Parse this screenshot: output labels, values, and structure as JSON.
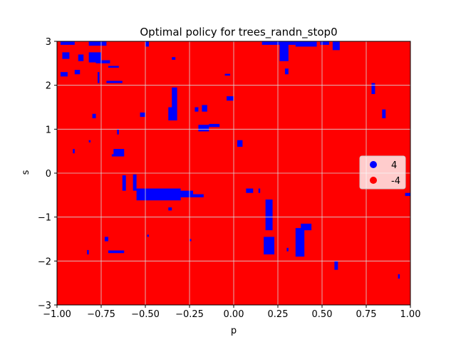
{
  "chart_data": {
    "type": "heatmap",
    "title": "Optimal policy for trees_randn_stop0",
    "xlabel": "p",
    "ylabel": "s",
    "xlim": [
      -1.0,
      1.0
    ],
    "ylim": [
      -3,
      3
    ],
    "xticks": [
      -1.0,
      -0.75,
      -0.5,
      -0.25,
      0.0,
      0.25,
      0.5,
      0.75,
      1.0
    ],
    "xtick_labels": [
      "−1.00",
      "−0.75",
      "−0.50",
      "−0.25",
      "0.00",
      "0.25",
      "0.50",
      "0.75",
      "1.00"
    ],
    "yticks": [
      -3,
      -2,
      -1,
      0,
      1,
      2,
      3
    ],
    "ytick_labels": [
      "−3",
      "−2",
      "−1",
      "0",
      "1",
      "2",
      "3"
    ],
    "grid": true,
    "background_value": -4,
    "legend_placement": "center-right",
    "legend": [
      {
        "label": "4",
        "color": "#0000ff"
      },
      {
        "label": "-4",
        "color": "#ff0000"
      }
    ],
    "regions_value_4": [
      {
        "p": [
          -0.98,
          -0.9
        ],
        "s": [
          2.92,
          3.0
        ]
      },
      {
        "p": [
          -0.82,
          -0.72
        ],
        "s": [
          2.9,
          3.0
        ]
      },
      {
        "p": [
          -0.82,
          -0.75
        ],
        "s": [
          2.52,
          2.75
        ]
      },
      {
        "p": [
          -0.97,
          -0.93
        ],
        "s": [
          2.6,
          2.75
        ]
      },
      {
        "p": [
          -0.88,
          -0.85
        ],
        "s": [
          2.55,
          2.7
        ]
      },
      {
        "p": [
          -0.78,
          -0.7
        ],
        "s": [
          2.5,
          2.57
        ]
      },
      {
        "p": [
          -0.5,
          -0.48
        ],
        "s": [
          2.88,
          3.0
        ]
      },
      {
        "p": [
          -0.98,
          -0.94
        ],
        "s": [
          2.2,
          2.3
        ]
      },
      {
        "p": [
          -0.9,
          -0.87
        ],
        "s": [
          2.25,
          2.35
        ]
      },
      {
        "p": [
          -0.77,
          -0.76
        ],
        "s": [
          2.05,
          2.3
        ]
      },
      {
        "p": [
          -0.72,
          -0.63
        ],
        "s": [
          2.05,
          2.1
        ]
      },
      {
        "p": [
          -0.71,
          -0.65
        ],
        "s": [
          2.4,
          2.44
        ]
      },
      {
        "p": [
          -0.35,
          -0.33
        ],
        "s": [
          2.58,
          2.64
        ]
      },
      {
        "p": [
          -0.05,
          -0.02
        ],
        "s": [
          2.22,
          2.26
        ]
      },
      {
        "p": [
          -0.35,
          -0.32
        ],
        "s": [
          1.2,
          1.95
        ]
      },
      {
        "p": [
          -0.37,
          -0.33
        ],
        "s": [
          1.2,
          1.5
        ]
      },
      {
        "p": [
          -0.22,
          -0.2
        ],
        "s": [
          1.4,
          1.5
        ]
      },
      {
        "p": [
          -0.18,
          -0.15
        ],
        "s": [
          1.4,
          1.55
        ]
      },
      {
        "p": [
          -0.04,
          0.0
        ],
        "s": [
          1.65,
          1.75
        ]
      },
      {
        "p": [
          -0.2,
          -0.14
        ],
        "s": [
          0.95,
          1.1
        ]
      },
      {
        "p": [
          -0.14,
          -0.08
        ],
        "s": [
          1.05,
          1.12
        ]
      },
      {
        "p": [
          -0.53,
          -0.5
        ],
        "s": [
          1.28,
          1.38
        ]
      },
      {
        "p": [
          -0.66,
          -0.65
        ],
        "s": [
          0.88,
          1.0
        ]
      },
      {
        "p": [
          -0.8,
          -0.78
        ],
        "s": [
          1.25,
          1.35
        ]
      },
      {
        "p": [
          -0.68,
          -0.62
        ],
        "s": [
          0.42,
          0.55
        ]
      },
      {
        "p": [
          -0.69,
          -0.62
        ],
        "s": [
          0.38,
          0.43
        ]
      },
      {
        "p": [
          -0.82,
          -0.81
        ],
        "s": [
          0.7,
          0.75
        ]
      },
      {
        "p": [
          0.02,
          0.05
        ],
        "s": [
          0.6,
          0.75
        ]
      },
      {
        "p": [
          -0.91,
          -0.9
        ],
        "s": [
          0.45,
          0.55
        ]
      },
      {
        "p": [
          -0.63,
          -0.61
        ],
        "s": [
          -0.4,
          -0.05
        ]
      },
      {
        "p": [
          -0.57,
          -0.55
        ],
        "s": [
          -0.4,
          -0.03
        ]
      },
      {
        "p": [
          -0.55,
          -0.3
        ],
        "s": [
          -0.62,
          -0.35
        ]
      },
      {
        "p": [
          -0.3,
          -0.23
        ],
        "s": [
          -0.55,
          -0.4
        ]
      },
      {
        "p": [
          -0.23,
          -0.17
        ],
        "s": [
          -0.55,
          -0.48
        ]
      },
      {
        "p": [
          -0.55,
          -0.5
        ],
        "s": [
          -0.4,
          -0.36
        ]
      },
      {
        "p": [
          -0.37,
          -0.35
        ],
        "s": [
          -0.85,
          -0.78
        ]
      },
      {
        "p": [
          0.07,
          0.11
        ],
        "s": [
          -0.45,
          -0.35
        ]
      },
      {
        "p": [
          0.14,
          0.15
        ],
        "s": [
          -0.45,
          -0.35
        ]
      },
      {
        "p": [
          0.18,
          0.22
        ],
        "s": [
          -1.3,
          -0.6
        ]
      },
      {
        "p": [
          0.17,
          0.23
        ],
        "s": [
          -1.85,
          -1.45
        ]
      },
      {
        "p": [
          0.35,
          0.4
        ],
        "s": [
          -1.9,
          -1.25
        ]
      },
      {
        "p": [
          0.38,
          0.44
        ],
        "s": [
          -1.3,
          -1.15
        ]
      },
      {
        "p": [
          0.3,
          0.31
        ],
        "s": [
          -1.78,
          -1.7
        ]
      },
      {
        "p": [
          -0.73,
          -0.71
        ],
        "s": [
          -1.55,
          -1.45
        ]
      },
      {
        "p": [
          -0.71,
          -0.62
        ],
        "s": [
          -1.82,
          -1.76
        ]
      },
      {
        "p": [
          -0.83,
          -0.82
        ],
        "s": [
          -1.85,
          -1.75
        ]
      },
      {
        "p": [
          -0.49,
          -0.48
        ],
        "s": [
          -1.45,
          -1.4
        ]
      },
      {
        "p": [
          -0.25,
          -0.24
        ],
        "s": [
          -1.55,
          -1.5
        ]
      },
      {
        "p": [
          0.57,
          0.59
        ],
        "s": [
          -2.2,
          -2.0
        ]
      },
      {
        "p": [
          0.93,
          0.94
        ],
        "s": [
          -2.4,
          -2.3
        ]
      },
      {
        "p": [
          0.97,
          1.0
        ],
        "s": [
          -0.52,
          -0.45
        ]
      },
      {
        "p": [
          0.84,
          0.86
        ],
        "s": [
          1.25,
          1.45
        ]
      },
      {
        "p": [
          0.78,
          0.8
        ],
        "s": [
          1.8,
          2.05
        ]
      },
      {
        "p": [
          0.16,
          0.35
        ],
        "s": [
          2.92,
          3.0
        ]
      },
      {
        "p": [
          0.26,
          0.31
        ],
        "s": [
          2.55,
          3.0
        ]
      },
      {
        "p": [
          0.35,
          0.47
        ],
        "s": [
          2.88,
          3.0
        ]
      },
      {
        "p": [
          0.49,
          0.54
        ],
        "s": [
          2.92,
          3.0
        ]
      },
      {
        "p": [
          0.56,
          0.6
        ],
        "s": [
          2.8,
          3.0
        ]
      },
      {
        "p": [
          0.29,
          0.31
        ],
        "s": [
          2.25,
          2.38
        ]
      }
    ]
  }
}
